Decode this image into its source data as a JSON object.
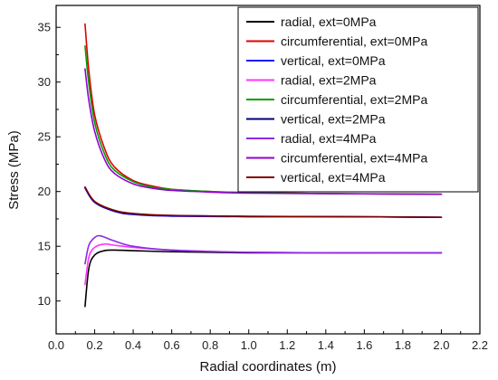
{
  "chart_data": {
    "type": "line",
    "title": "",
    "xlabel": "Radial coordinates (m)",
    "ylabel": "Stress (MPa)",
    "xlim": [
      0.0,
      2.2
    ],
    "ylim": [
      7,
      37
    ],
    "x_ticks": [
      "0.0",
      "0.2",
      "0.4",
      "0.6",
      "0.8",
      "1.0",
      "1.2",
      "1.4",
      "1.6",
      "1.8",
      "2.0",
      "2.2"
    ],
    "y_ticks": [
      "10",
      "15",
      "20",
      "25",
      "30",
      "35"
    ],
    "grid": false,
    "legend_position": "top-right",
    "series": [
      {
        "name": "radial, ext=0MPa",
        "color": "#000000",
        "x": [
          0.15,
          0.17,
          0.2,
          0.25,
          0.3,
          0.4,
          0.6,
          1.0,
          1.5,
          2.0
        ],
        "y": [
          9.5,
          13.0,
          14.2,
          14.6,
          14.65,
          14.6,
          14.5,
          14.4,
          14.4,
          14.4
        ]
      },
      {
        "name": "circumferential, ext=0MPa",
        "color": "#e00000",
        "x": [
          0.15,
          0.17,
          0.2,
          0.25,
          0.3,
          0.4,
          0.5,
          0.6,
          0.8,
          1.0,
          1.5,
          2.0
        ],
        "y": [
          35.3,
          31.0,
          27.0,
          24.0,
          22.3,
          21.0,
          20.5,
          20.2,
          20.0,
          19.9,
          19.8,
          19.75
        ]
      },
      {
        "name": "vertical, ext=0MPa",
        "color": "#1a1aff",
        "x": [
          0.15,
          0.2,
          0.3,
          0.4,
          0.6,
          1.0,
          1.5,
          2.0
        ],
        "y": [
          20.3,
          19.0,
          18.2,
          17.9,
          17.75,
          17.7,
          17.7,
          17.65
        ]
      },
      {
        "name": "radial, ext=2MPa",
        "color": "#ff33ff",
        "x": [
          0.15,
          0.17,
          0.2,
          0.25,
          0.3,
          0.4,
          0.6,
          1.0,
          1.5,
          2.0
        ],
        "y": [
          11.5,
          14.0,
          14.9,
          15.2,
          15.1,
          14.9,
          14.65,
          14.45,
          14.4,
          14.4
        ]
      },
      {
        "name": "circumferential, ext=2MPa",
        "color": "#00a000",
        "x": [
          0.15,
          0.17,
          0.2,
          0.25,
          0.3,
          0.4,
          0.5,
          0.6,
          0.8,
          1.0,
          1.5,
          2.0
        ],
        "y": [
          33.3,
          29.8,
          26.3,
          23.5,
          22.0,
          20.9,
          20.4,
          20.2,
          20.0,
          19.9,
          19.8,
          19.75
        ]
      },
      {
        "name": "vertical, ext=2MPa",
        "color": "#00007a",
        "x": [
          0.15,
          0.2,
          0.3,
          0.4,
          0.6,
          1.0,
          1.5,
          2.0
        ],
        "y": [
          20.4,
          19.05,
          18.25,
          17.95,
          17.8,
          17.72,
          17.7,
          17.65
        ]
      },
      {
        "name": "radial, ext=4MPa",
        "color": "#8a2be2",
        "x": [
          0.15,
          0.17,
          0.2,
          0.23,
          0.3,
          0.4,
          0.6,
          1.0,
          1.5,
          2.0
        ],
        "y": [
          13.4,
          15.1,
          15.8,
          15.95,
          15.5,
          15.0,
          14.65,
          14.45,
          14.4,
          14.4
        ]
      },
      {
        "name": "circumferential, ext=4MPa",
        "color": "#9400d3",
        "x": [
          0.15,
          0.17,
          0.2,
          0.25,
          0.3,
          0.4,
          0.5,
          0.6,
          0.8,
          1.0,
          1.5,
          2.0
        ],
        "y": [
          31.2,
          28.3,
          25.5,
          23.0,
          21.7,
          20.7,
          20.3,
          20.1,
          19.95,
          19.85,
          19.8,
          19.75
        ]
      },
      {
        "name": "vertical, ext=4MPa",
        "color": "#800000",
        "x": [
          0.15,
          0.2,
          0.3,
          0.4,
          0.6,
          1.0,
          1.5,
          2.0
        ],
        "y": [
          20.4,
          19.1,
          18.3,
          18.0,
          17.82,
          17.74,
          17.7,
          17.65
        ]
      }
    ]
  }
}
